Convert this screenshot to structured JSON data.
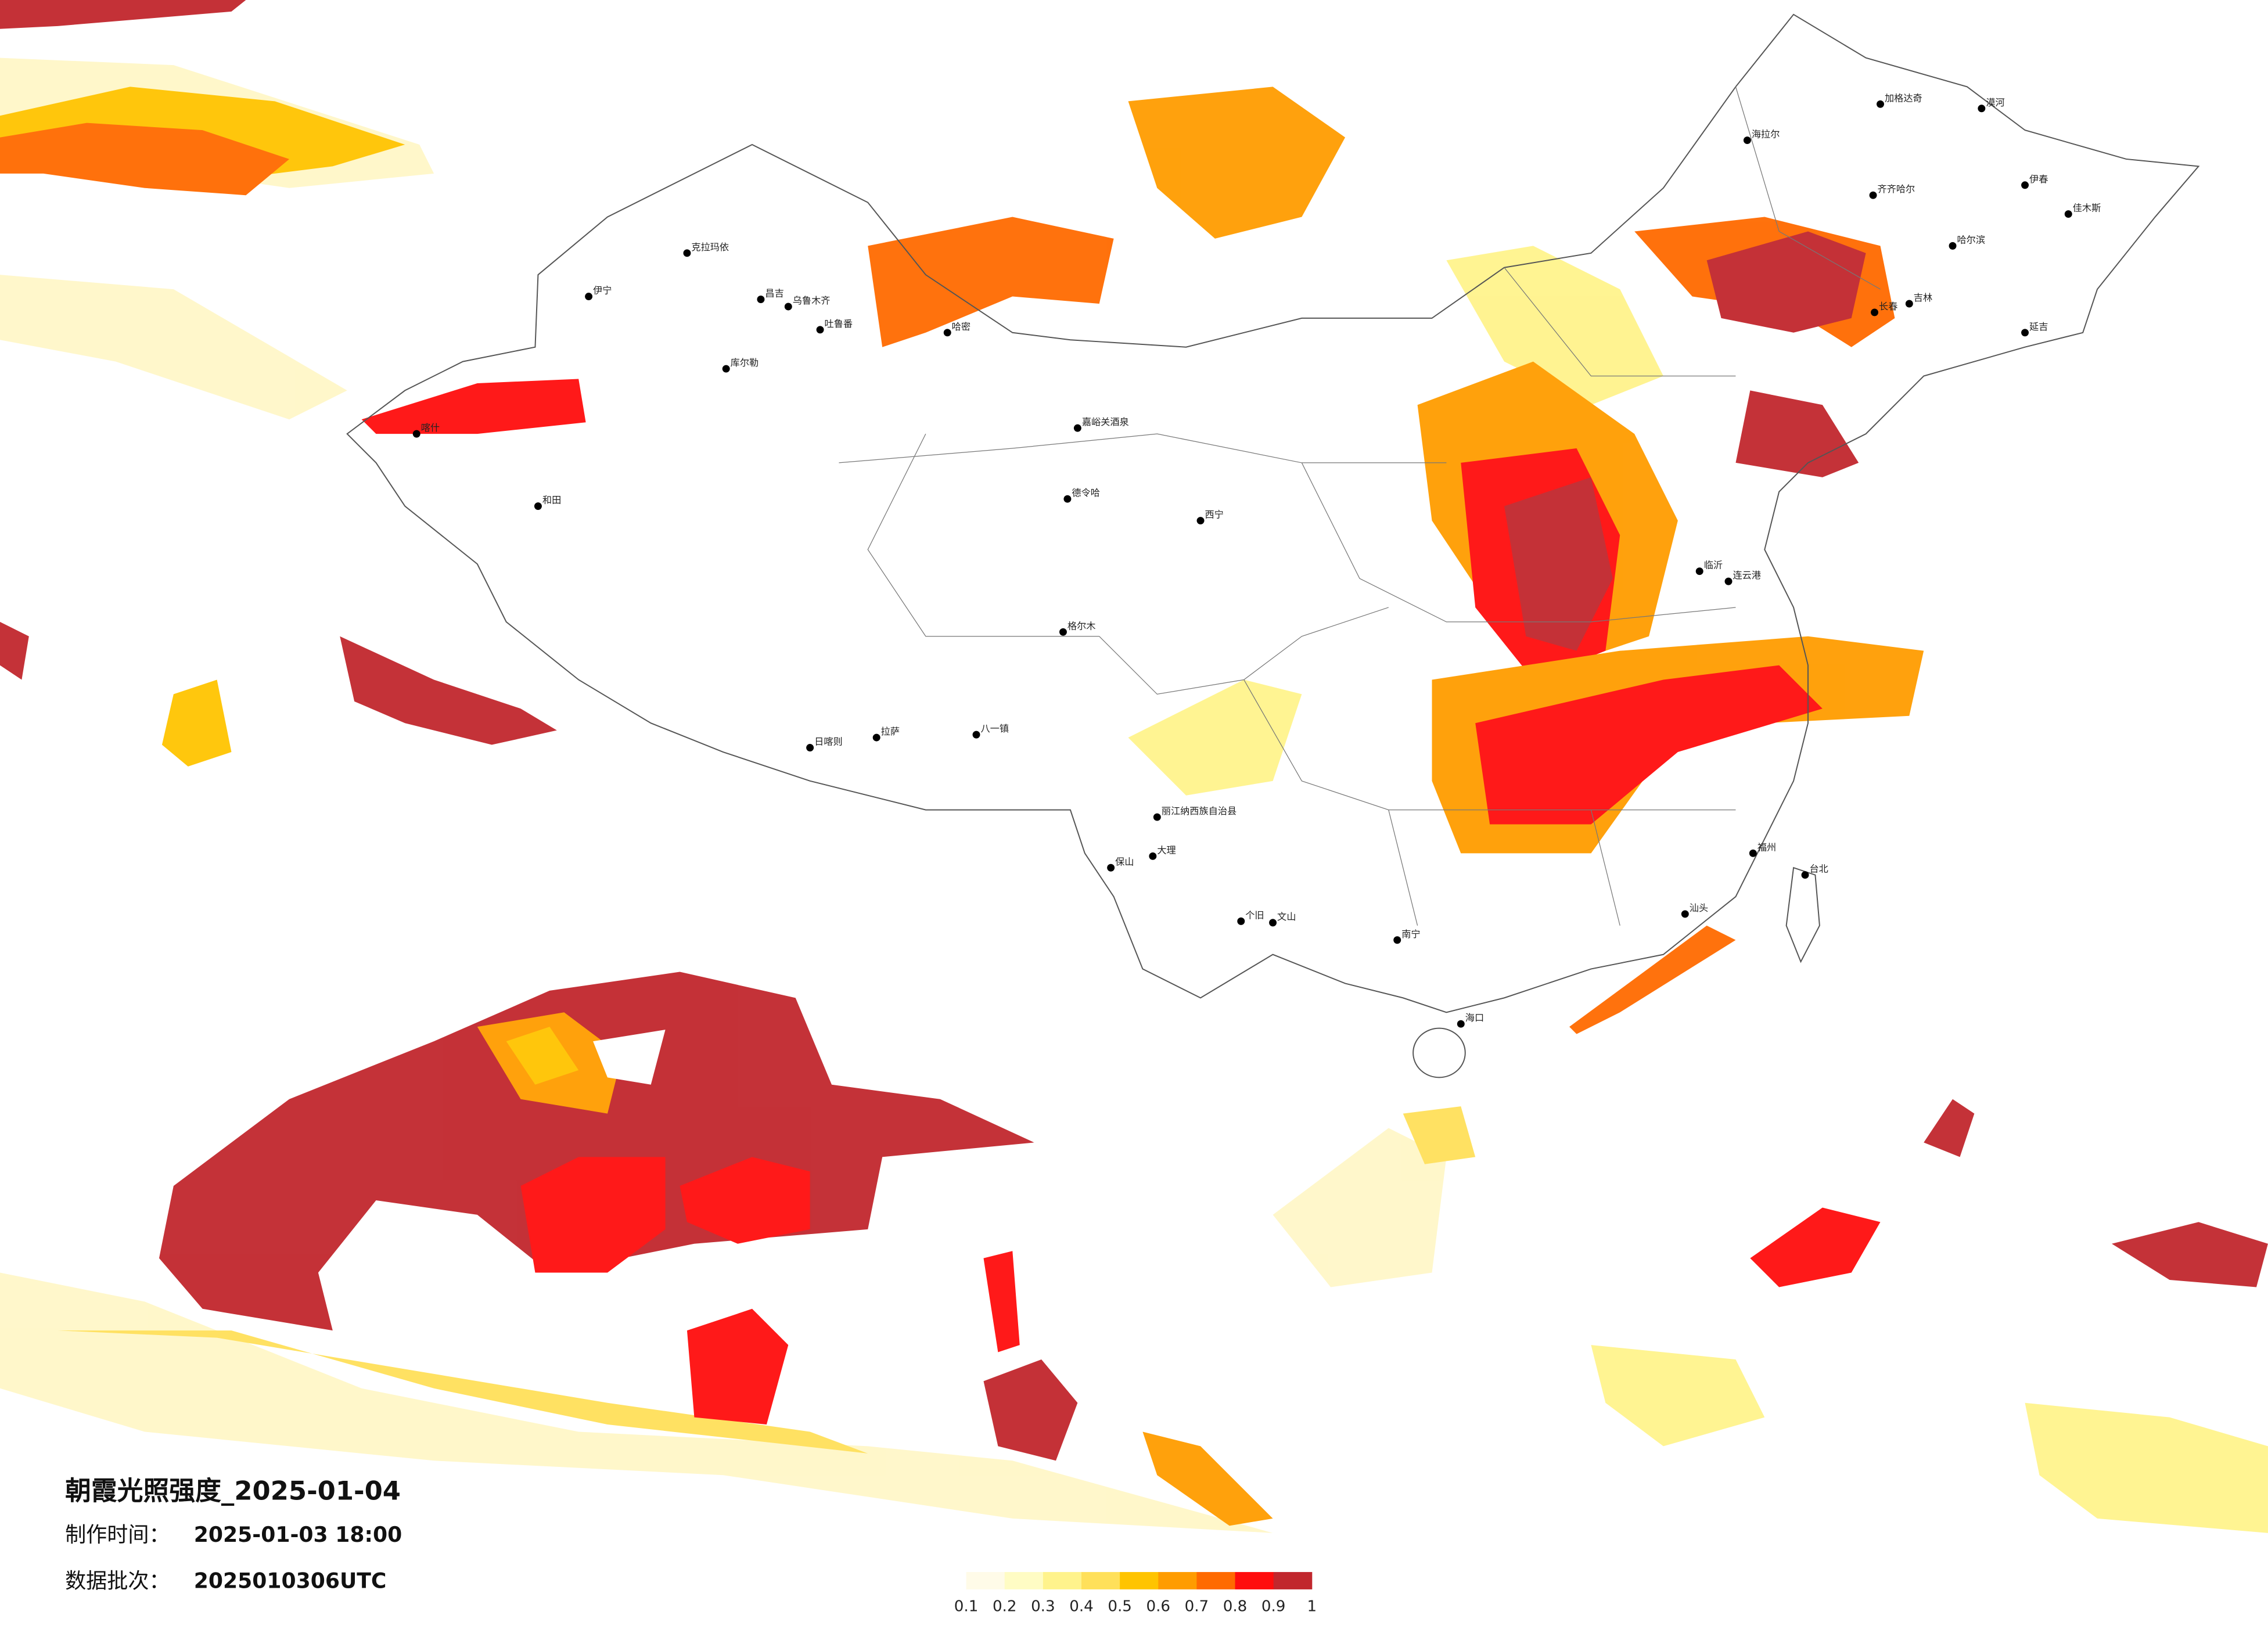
{
  "title": "朝霞光照强度_2025-01-04",
  "info": [
    {
      "label": "制作时间：",
      "value": "2025-01-03 18:00"
    },
    {
      "label": "数据批次：",
      "value": "2025010306UTC"
    }
  ],
  "legend": {
    "colors": [
      "#fffbe8",
      "#fffcc4",
      "#fff38c",
      "#ffe05a",
      "#ffc400",
      "#ff9c00",
      "#ff6a00",
      "#ff0d0d",
      "#c1272d"
    ],
    "ticks": [
      0.1,
      0.2,
      0.3,
      0.4,
      0.5,
      0.6,
      0.7,
      0.8,
      0.9,
      1
    ]
  },
  "cities": [
    "克拉玛依",
    "伊宁",
    "昌吉",
    "乌鲁木齐",
    "吐鲁番",
    "哈密",
    "库尔勒",
    "喀什",
    "和田",
    "德令哈",
    "格尔木",
    "日喀则",
    "拉萨",
    "八一镇",
    "漠河",
    "加格达奇",
    "海拉尔",
    "伊春",
    "佳木斯",
    "齐齐哈尔",
    "哈尔滨",
    "长春",
    "吉林",
    "延吉",
    "保山",
    "大理",
    "个旧",
    "文山",
    "南宁",
    "海口",
    "丽江纳西族自治县",
    "嘉峪关酒泉",
    "西宁",
    "临沂",
    "连云港",
    "福州",
    "台北",
    "汕头"
  ]
}
